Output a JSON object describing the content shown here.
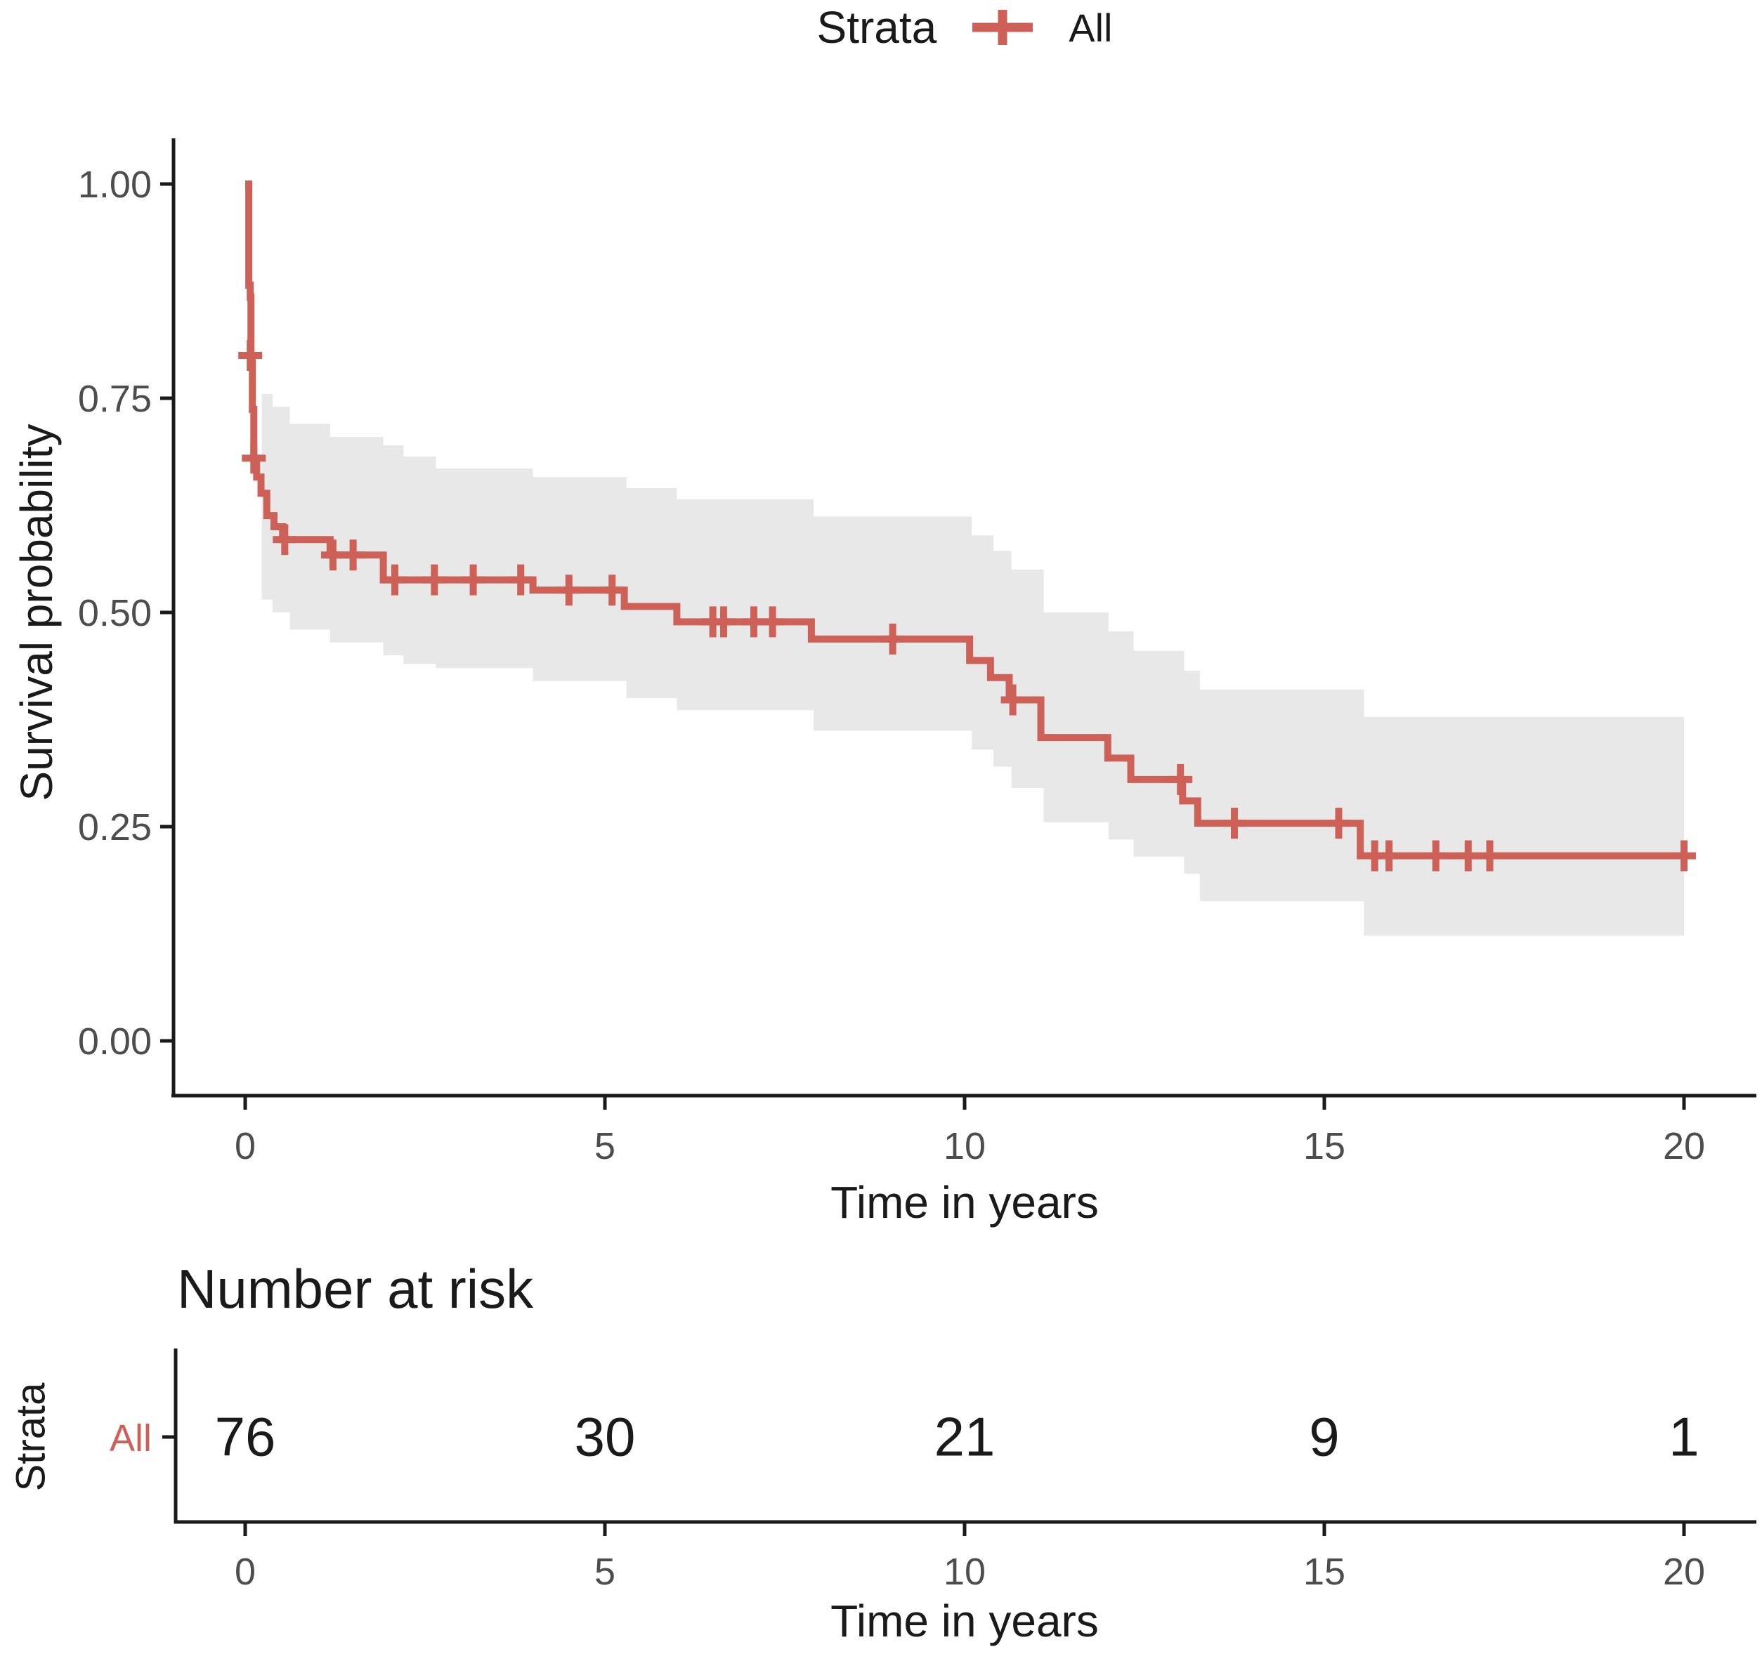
{
  "legend": {
    "title": "Strata",
    "items": [
      {
        "label": "All",
        "color": "#CD6157",
        "marker": "plus-censor-icon"
      }
    ]
  },
  "colors": {
    "curve": "#CD6157",
    "ci_band": "#E8E8E8",
    "axis": "#1A1A1A",
    "tick_label": "#4D4D4D",
    "heading": "#1A1A1A",
    "risk_row_label": "#CD6157"
  },
  "chart_data": {
    "type": "line",
    "subtype": "kaplan-meier-survival-step",
    "title": "",
    "xlabel": "Time in years",
    "ylabel": "Survival probability",
    "xlim": [
      0,
      20
    ],
    "ylim": [
      0,
      1
    ],
    "grid": false,
    "legend_position": "top",
    "xticks": [
      0,
      5,
      10,
      15,
      20
    ],
    "xtick_labels": [
      "0",
      "5",
      "10",
      "15",
      "20"
    ],
    "yticks": [
      1.0,
      0.75,
      0.5,
      0.25,
      0.0
    ],
    "ytick_labels": [
      "1.00",
      "0.75",
      "0.50",
      "0.25",
      "0.00"
    ],
    "series": [
      {
        "name": "All",
        "color": "#CD6157",
        "steps": [
          [
            0,
            1.0
          ],
          [
            0.05,
            0.882
          ],
          [
            0.07,
            0.868
          ],
          [
            0.08,
            0.8
          ],
          [
            0.1,
            0.737
          ],
          [
            0.12,
            0.68
          ],
          [
            0.16,
            0.658
          ],
          [
            0.22,
            0.639
          ],
          [
            0.3,
            0.613
          ],
          [
            0.4,
            0.6
          ],
          [
            0.52,
            0.585
          ],
          [
            1.18,
            0.567
          ],
          [
            1.92,
            0.538
          ],
          [
            4.0,
            0.526
          ],
          [
            5.27,
            0.507
          ],
          [
            6.0,
            0.489
          ],
          [
            7.87,
            0.469
          ],
          [
            10.07,
            0.444
          ],
          [
            10.36,
            0.424
          ],
          [
            10.62,
            0.398
          ],
          [
            11.06,
            0.354
          ],
          [
            11.99,
            0.33
          ],
          [
            12.31,
            0.305
          ],
          [
            13.03,
            0.28
          ],
          [
            13.24,
            0.254
          ],
          [
            15.5,
            0.216
          ],
          [
            20,
            0.216
          ]
        ],
        "censor_marks": [
          [
            0.07,
            0.8
          ],
          [
            0.12,
            0.68
          ],
          [
            0.55,
            0.585
          ],
          [
            1.22,
            0.567
          ],
          [
            1.5,
            0.567
          ],
          [
            2.08,
            0.538
          ],
          [
            2.63,
            0.538
          ],
          [
            3.17,
            0.538
          ],
          [
            3.83,
            0.538
          ],
          [
            4.5,
            0.526
          ],
          [
            5.1,
            0.526
          ],
          [
            6.5,
            0.489
          ],
          [
            6.65,
            0.489
          ],
          [
            7.07,
            0.489
          ],
          [
            7.33,
            0.489
          ],
          [
            9.0,
            0.469
          ],
          [
            10.67,
            0.398
          ],
          [
            13.0,
            0.305
          ],
          [
            13.75,
            0.254
          ],
          [
            15.2,
            0.254
          ],
          [
            15.7,
            0.216
          ],
          [
            15.9,
            0.216
          ],
          [
            16.55,
            0.216
          ],
          [
            17.0,
            0.216
          ],
          [
            17.3,
            0.216
          ],
          [
            20.0,
            0.216
          ]
        ]
      }
    ],
    "ci_band": {
      "color": "#E8E8E8",
      "points": [
        [
          0.23,
          0.515,
          0.755
        ],
        [
          0.38,
          0.5,
          0.74
        ],
        [
          0.62,
          0.48,
          0.72
        ],
        [
          1.18,
          0.465,
          0.705
        ],
        [
          1.92,
          0.45,
          0.695
        ],
        [
          2.2,
          0.44,
          0.682
        ],
        [
          2.65,
          0.435,
          0.668
        ],
        [
          4.0,
          0.42,
          0.658
        ],
        [
          5.3,
          0.4,
          0.645
        ],
        [
          6.0,
          0.386,
          0.632
        ],
        [
          7.9,
          0.362,
          0.612
        ],
        [
          10.1,
          0.34,
          0.59
        ],
        [
          10.4,
          0.32,
          0.572
        ],
        [
          10.65,
          0.295,
          0.55
        ],
        [
          11.1,
          0.255,
          0.5
        ],
        [
          12.0,
          0.235,
          0.478
        ],
        [
          12.35,
          0.215,
          0.455
        ],
        [
          13.05,
          0.195,
          0.432
        ],
        [
          13.27,
          0.163,
          0.41
        ],
        [
          15.55,
          0.123,
          0.378
        ],
        [
          20,
          0.123,
          0.378
        ]
      ]
    },
    "risk_table": {
      "title": "Number at risk",
      "ylabel": "Strata",
      "xlabel": "Time in years",
      "times": [
        0,
        5,
        10,
        15,
        20
      ],
      "rows": [
        {
          "name": "All",
          "values": [
            76,
            30,
            21,
            9,
            1
          ]
        }
      ]
    }
  }
}
